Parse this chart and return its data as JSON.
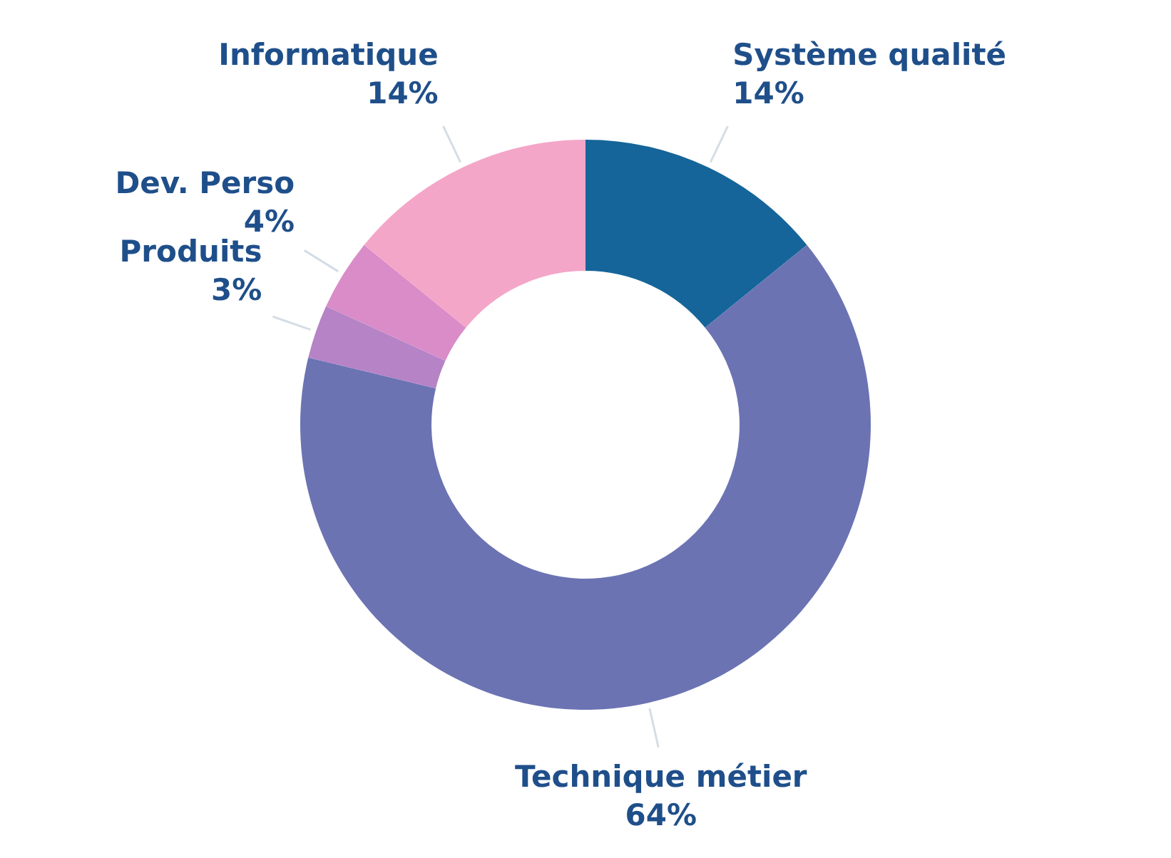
{
  "chart_data": {
    "type": "donut",
    "categories": [
      "Système qualité",
      "Technique métier",
      "Produits",
      "Dev. Perso",
      "Informatique"
    ],
    "values": [
      14,
      64,
      3,
      4,
      14
    ],
    "colors": [
      "#15659a",
      "#6b73b3",
      "#b583c6",
      "#d98cc8",
      "#f4a6c8"
    ],
    "value_labels": [
      "14%",
      "64%",
      "3%",
      "4%",
      "14%"
    ]
  }
}
